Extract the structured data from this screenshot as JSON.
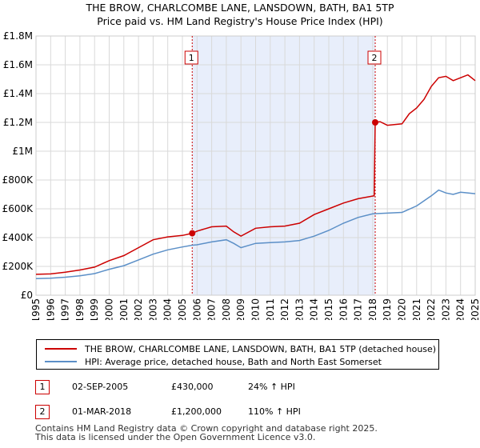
{
  "chart_data": {
    "type": "line",
    "title": "THE BROW, CHARLCOMBE LANE, LANSDOWN, BATH, BA1 5TP",
    "subtitle": "Price paid vs. HM Land Registry's House Price Index (HPI)",
    "xlabel": "",
    "ylabel": "",
    "xlim": [
      1995,
      2025
    ],
    "ylim": [
      0,
      1800000
    ],
    "y_ticks": [
      {
        "value": 0,
        "label": "£0"
      },
      {
        "value": 200000,
        "label": "£200K"
      },
      {
        "value": 400000,
        "label": "£400K"
      },
      {
        "value": 600000,
        "label": "£600K"
      },
      {
        "value": 800000,
        "label": "£800K"
      },
      {
        "value": 1000000,
        "label": "£1M"
      },
      {
        "value": 1200000,
        "label": "£1.2M"
      },
      {
        "value": 1400000,
        "label": "£1.4M"
      },
      {
        "value": 1600000,
        "label": "£1.6M"
      },
      {
        "value": 1800000,
        "label": "£1.8M"
      }
    ],
    "x_ticks": [
      "1995",
      "1996",
      "1997",
      "1998",
      "1999",
      "2000",
      "2001",
      "2002",
      "2003",
      "2004",
      "2005",
      "2006",
      "2007",
      "2008",
      "2009",
      "2010",
      "2011",
      "2012",
      "2013",
      "2014",
      "2015",
      "2016",
      "2017",
      "2018",
      "2019",
      "2020",
      "2021",
      "2022",
      "2023",
      "2024",
      "2025"
    ],
    "grid": true,
    "shaded_range": [
      2005.67,
      2018.17
    ],
    "series": [
      {
        "name": "THE BROW, CHARLCOMBE LANE, LANSDOWN, BATH, BA1 5TP (detached house)",
        "color": "#cc0000",
        "points": [
          [
            1995,
            145000
          ],
          [
            1996,
            148000
          ],
          [
            1997,
            160000
          ],
          [
            1998,
            175000
          ],
          [
            1999,
            195000
          ],
          [
            2000,
            240000
          ],
          [
            2001,
            275000
          ],
          [
            2002,
            330000
          ],
          [
            2003,
            385000
          ],
          [
            2004,
            405000
          ],
          [
            2005,
            415000
          ],
          [
            2005.67,
            430000
          ],
          [
            2006,
            445000
          ],
          [
            2007,
            475000
          ],
          [
            2008,
            480000
          ],
          [
            2008.5,
            440000
          ],
          [
            2009,
            410000
          ],
          [
            2010,
            465000
          ],
          [
            2011,
            475000
          ],
          [
            2012,
            480000
          ],
          [
            2013,
            500000
          ],
          [
            2014,
            560000
          ],
          [
            2015,
            600000
          ],
          [
            2016,
            640000
          ],
          [
            2017,
            670000
          ],
          [
            2018.1,
            690000
          ],
          [
            2018.17,
            1200000
          ],
          [
            2018.5,
            1205000
          ],
          [
            2019,
            1180000
          ],
          [
            2020,
            1190000
          ],
          [
            2020.5,
            1260000
          ],
          [
            2021,
            1300000
          ],
          [
            2021.5,
            1360000
          ],
          [
            2022,
            1450000
          ],
          [
            2022.5,
            1510000
          ],
          [
            2023,
            1520000
          ],
          [
            2023.5,
            1490000
          ],
          [
            2024,
            1510000
          ],
          [
            2024.5,
            1530000
          ],
          [
            2025,
            1490000
          ]
        ]
      },
      {
        "name": "HPI: Average price, detached house, Bath and North East Somerset",
        "color": "#5b8fc7",
        "points": [
          [
            1995,
            115000
          ],
          [
            1996,
            118000
          ],
          [
            1997,
            125000
          ],
          [
            1998,
            135000
          ],
          [
            1999,
            150000
          ],
          [
            2000,
            180000
          ],
          [
            2001,
            205000
          ],
          [
            2002,
            245000
          ],
          [
            2003,
            285000
          ],
          [
            2004,
            315000
          ],
          [
            2005,
            335000
          ],
          [
            2005.67,
            347000
          ],
          [
            2006,
            350000
          ],
          [
            2007,
            370000
          ],
          [
            2008,
            385000
          ],
          [
            2008.5,
            360000
          ],
          [
            2009,
            330000
          ],
          [
            2010,
            360000
          ],
          [
            2011,
            365000
          ],
          [
            2012,
            370000
          ],
          [
            2013,
            380000
          ],
          [
            2014,
            410000
          ],
          [
            2015,
            450000
          ],
          [
            2016,
            500000
          ],
          [
            2017,
            540000
          ],
          [
            2018,
            565000
          ],
          [
            2019,
            570000
          ],
          [
            2020,
            575000
          ],
          [
            2021,
            620000
          ],
          [
            2022,
            690000
          ],
          [
            2022.5,
            730000
          ],
          [
            2023,
            710000
          ],
          [
            2023.5,
            700000
          ],
          [
            2024,
            715000
          ],
          [
            2025,
            705000
          ]
        ]
      }
    ],
    "markers": [
      {
        "label": "1",
        "x": 2005.67,
        "y": 430000
      },
      {
        "label": "2",
        "x": 2018.17,
        "y": 1200000
      }
    ]
  },
  "legend": [
    {
      "label": "THE BROW, CHARLCOMBE LANE, LANSDOWN, BATH, BA1 5TP (detached house)",
      "color": "#cc0000"
    },
    {
      "label": "HPI: Average price, detached house, Bath and North East Somerset",
      "color": "#5b8fc7"
    }
  ],
  "sales": [
    {
      "num": "1",
      "date": "02-SEP-2005",
      "price": "£430,000",
      "hpi": "24% ↑ HPI"
    },
    {
      "num": "2",
      "date": "01-MAR-2018",
      "price": "£1,200,000",
      "hpi": "110% ↑ HPI"
    }
  ],
  "footer": {
    "line1": "Contains HM Land Registry data © Crown copyright and database right 2025.",
    "line2": "This data is licensed under the Open Government Licence v3.0."
  }
}
